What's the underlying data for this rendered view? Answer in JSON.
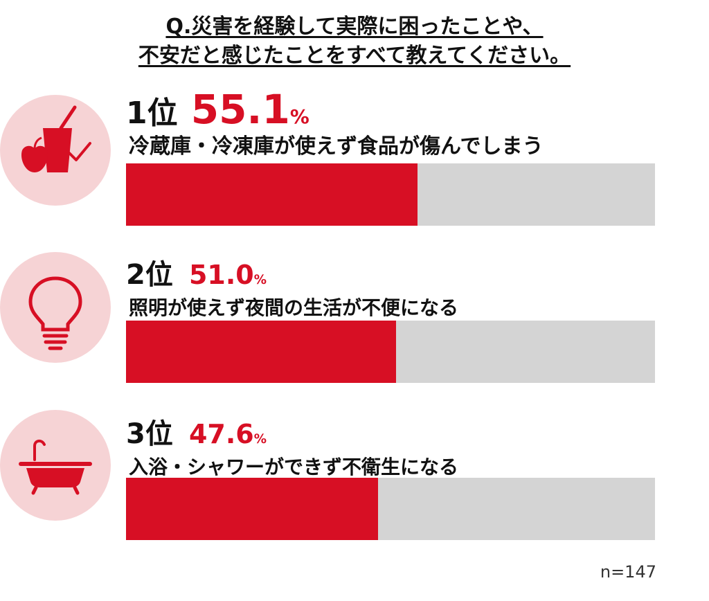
{
  "title_lines": [
    "Q.災害を経験して実際に困ったことや、",
    "不安だと感じたことをすべて教えてください。"
  ],
  "colors": {
    "accent": "#d70f24",
    "track": "#d4d4d4",
    "icon_bg": "#f6d3d5"
  },
  "items": [
    {
      "rank": "1位",
      "percent": "55.1",
      "percent_symbol": "%",
      "label": "冷蔵庫・冷凍庫が使えず食品が傷んでしまう",
      "icon": "refrigerator-food-icon"
    },
    {
      "rank": "2位",
      "percent": "51.0",
      "percent_symbol": "%",
      "label": "照明が使えず夜間の生活が不便になる",
      "icon": "light-bulb-icon"
    },
    {
      "rank": "3位",
      "percent": "47.6",
      "percent_symbol": "%",
      "label": "入浴・シャワーができず不衛生になる",
      "icon": "bathtub-icon"
    }
  ],
  "chart_data": {
    "type": "bar",
    "orientation": "horizontal",
    "categories": [
      "冷蔵庫・冷凍庫が使えず食品が傷んでしまう",
      "照明が使えず夜間の生活が不便になる",
      "入浴・シャワーができず不衛生になる"
    ],
    "values": [
      55.1,
      51.0,
      47.6
    ],
    "xlim": [
      0,
      100
    ],
    "grid": false
  },
  "sample_note": "n=147"
}
